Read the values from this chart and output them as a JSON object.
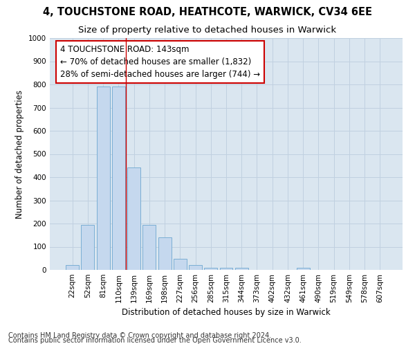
{
  "title1": "4, TOUCHSTONE ROAD, HEATHCOTE, WARWICK, CV34 6EE",
  "title2": "Size of property relative to detached houses in Warwick",
  "xlabel": "Distribution of detached houses by size in Warwick",
  "ylabel": "Number of detached properties",
  "categories": [
    "22sqm",
    "52sqm",
    "81sqm",
    "110sqm",
    "139sqm",
    "169sqm",
    "198sqm",
    "227sqm",
    "256sqm",
    "285sqm",
    "315sqm",
    "344sqm",
    "373sqm",
    "402sqm",
    "432sqm",
    "461sqm",
    "490sqm",
    "519sqm",
    "549sqm",
    "578sqm",
    "607sqm"
  ],
  "values": [
    20,
    195,
    790,
    790,
    443,
    195,
    140,
    48,
    20,
    10,
    10,
    10,
    0,
    0,
    0,
    10,
    0,
    0,
    0,
    0,
    0
  ],
  "bar_color": "#c5d8ee",
  "bar_edge_color": "#7aaed4",
  "annotation_line_bin": 3.5,
  "annotation_box_text": "4 TOUCHSTONE ROAD: 143sqm\n← 70% of detached houses are smaller (1,832)\n28% of semi-detached houses are larger (744) →",
  "annotation_box_color": "white",
  "annotation_box_edge_color": "#cc0000",
  "grid_color": "#c0d0e0",
  "fig_background": "white",
  "plot_background": "#dae6f0",
  "ylim": [
    0,
    1000
  ],
  "yticks": [
    0,
    100,
    200,
    300,
    400,
    500,
    600,
    700,
    800,
    900,
    1000
  ],
  "footnote1": "Contains HM Land Registry data © Crown copyright and database right 2024.",
  "footnote2": "Contains public sector information licensed under the Open Government Licence v3.0.",
  "title1_fontsize": 10.5,
  "title2_fontsize": 9.5,
  "tick_fontsize": 7.5,
  "ylabel_fontsize": 8.5,
  "xlabel_fontsize": 8.5,
  "annotation_fontsize": 8.5,
  "footnote_fontsize": 7
}
